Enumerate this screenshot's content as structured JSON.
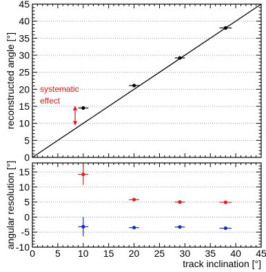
{
  "colors": {
    "ref_line": "#000000",
    "points_black": "#000000",
    "points_red": "#e8191a",
    "points_blue": "#1428d2",
    "annotation": "#e8191a",
    "grid": "#9a9a9a"
  },
  "chart_data": [
    {
      "type": "scatter",
      "title": "",
      "xlabel": "",
      "ylabel": "reconstructed angle [°]",
      "xlim": [
        0,
        45
      ],
      "ylim": [
        0,
        45
      ],
      "yticks": [
        "0",
        "5",
        "10",
        "15",
        "20",
        "25",
        "30",
        "35",
        "40",
        "45"
      ],
      "grid": "horizontal dotted",
      "reference_line": {
        "x": [
          0,
          45
        ],
        "y": [
          0,
          45
        ]
      },
      "series": [
        {
          "color": "black",
          "points": [
            {
              "x": 10,
              "y": 14.5,
              "xerr": 1
            },
            {
              "x": 20,
              "y": 21.1,
              "xerr": 1
            },
            {
              "x": 29,
              "y": 29.2,
              "xerr": 1
            },
            {
              "x": 38,
              "y": 38.0,
              "xerr": 1.2
            }
          ]
        }
      ],
      "annotation": {
        "lines": [
          "systematic",
          "effect"
        ],
        "arrow_y": [
          9.5,
          15
        ]
      }
    },
    {
      "type": "scatter",
      "title": "",
      "xlabel": "track inclination [°]",
      "ylabel": "angular resolution [°]",
      "xlim": [
        0,
        45
      ],
      "ylim": [
        -10,
        18
      ],
      "xticks": [
        "0",
        "5",
        "10",
        "15",
        "20",
        "25",
        "30",
        "35",
        "40",
        "45"
      ],
      "yticks": [
        "-10",
        "-5",
        "0",
        "5",
        "10",
        "15"
      ],
      "grid": "horizontal dotted",
      "series": [
        {
          "color": "red",
          "points": [
            {
              "x": 10,
              "y": 14.2,
              "xerr": 1,
              "yerr": 3.5
            },
            {
              "x": 20,
              "y": 5.8,
              "xerr": 1,
              "yerr": 0.4
            },
            {
              "x": 29,
              "y": 5.0,
              "xerr": 1,
              "yerr": 0.3
            },
            {
              "x": 38,
              "y": 4.9,
              "xerr": 1.2,
              "yerr": 0.3
            }
          ]
        },
        {
          "color": "blue",
          "points": [
            {
              "x": 10,
              "y": -3.2,
              "xerr": 1,
              "yerr": 3.2
            },
            {
              "x": 20,
              "y": -3.5,
              "xerr": 1,
              "yerr": 0.4
            },
            {
              "x": 29,
              "y": -3.3,
              "xerr": 1,
              "yerr": 0.3
            },
            {
              "x": 38,
              "y": -3.7,
              "xerr": 1.2,
              "yerr": 0.3
            }
          ]
        }
      ]
    }
  ]
}
